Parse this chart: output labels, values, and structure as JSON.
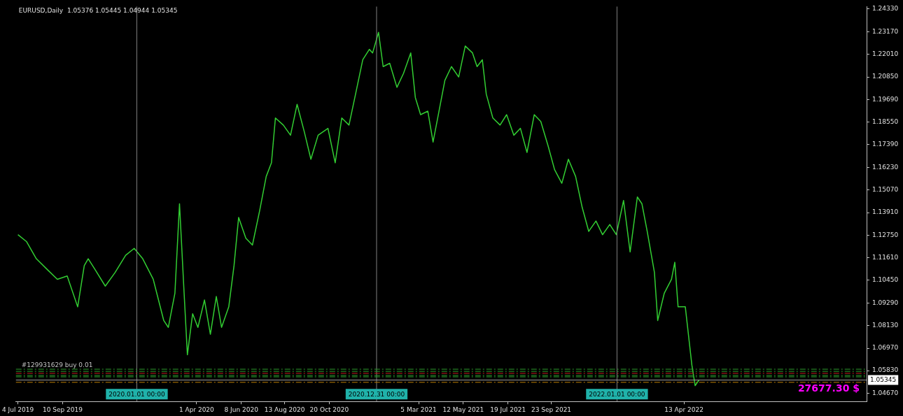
{
  "chart_data": {
    "type": "line",
    "title": "EURUSD,Daily  1.05376 1.05445 1.04944 1.05345",
    "x": [
      "2019-07-04",
      "2019-07-17",
      "2019-08-01",
      "2019-08-17",
      "2019-09-02",
      "2019-09-17",
      "2019-10-03",
      "2019-10-13",
      "2019-10-19",
      "2019-10-29",
      "2019-11-14",
      "2019-11-29",
      "2019-12-15",
      "2019-12-28",
      "2020-01-10",
      "2020-01-26",
      "2020-02-11",
      "2020-02-18",
      "2020-02-28",
      "2020-03-06",
      "2020-03-13",
      "2020-03-18",
      "2020-03-26",
      "2020-04-03",
      "2020-04-13",
      "2020-04-22",
      "2020-05-01",
      "2020-05-09",
      "2020-05-20",
      "2020-05-28",
      "2020-06-04",
      "2020-06-15",
      "2020-06-25",
      "2020-07-06",
      "2020-07-16",
      "2020-07-24",
      "2020-07-30",
      "2020-08-11",
      "2020-08-22",
      "2020-09-01",
      "2020-09-12",
      "2020-09-22",
      "2020-10-03",
      "2020-10-18",
      "2020-10-29",
      "2020-11-08",
      "2020-11-19",
      "2020-11-29",
      "2020-12-10",
      "2020-12-20",
      "2020-12-25",
      "2021-01-03",
      "2021-01-10",
      "2021-01-20",
      "2021-01-31",
      "2021-02-10",
      "2021-02-21",
      "2021-02-28",
      "2021-03-08",
      "2021-03-19",
      "2021-03-27",
      "2021-04-04",
      "2021-04-14",
      "2021-04-24",
      "2021-05-05",
      "2021-05-15",
      "2021-05-26",
      "2021-06-02",
      "2021-06-10",
      "2021-06-16",
      "2021-06-26",
      "2021-07-07",
      "2021-07-17",
      "2021-07-28",
      "2021-08-07",
      "2021-08-17",
      "2021-08-28",
      "2021-09-07",
      "2021-09-18",
      "2021-09-28",
      "2021-10-09",
      "2021-10-19",
      "2021-10-30",
      "2021-11-09",
      "2021-11-19",
      "2021-11-30",
      "2021-12-10",
      "2021-12-21",
      "2021-12-31",
      "2022-01-11",
      "2022-01-21",
      "2022-02-01",
      "2022-02-08",
      "2022-02-16",
      "2022-02-27",
      "2022-03-04",
      "2022-03-14",
      "2022-03-25",
      "2022-03-30",
      "2022-04-04",
      "2022-04-15",
      "2022-04-25",
      "2022-04-30",
      "2022-05-06"
    ],
    "series": [
      {
        "color": "#32cd32",
        "values": [
          1.1278,
          1.1243,
          1.1155,
          1.1102,
          1.105,
          1.1067,
          1.0909,
          1.112,
          1.1155,
          1.1102,
          1.1015,
          1.1085,
          1.1173,
          1.1208,
          1.1155,
          1.105,
          1.0839,
          1.0804,
          1.0979,
          1.1436,
          1.0979,
          1.0664,
          1.0874,
          1.0804,
          1.0944,
          1.0769,
          1.0962,
          1.0804,
          1.0909,
          1.112,
          1.1366,
          1.126,
          1.1225,
          1.1401,
          1.1576,
          1.1646,
          1.1875,
          1.1839,
          1.1787,
          1.1945,
          1.1804,
          1.1664,
          1.1787,
          1.1822,
          1.1646,
          1.1875,
          1.1839,
          1.1997,
          1.2173,
          1.2226,
          1.2208,
          1.2313,
          1.2138,
          1.2155,
          1.2032,
          1.2103,
          1.2208,
          1.198,
          1.1892,
          1.191,
          1.1752,
          1.1892,
          1.2068,
          1.2138,
          1.2085,
          1.2243,
          1.2208,
          1.2138,
          1.2173,
          1.1997,
          1.1875,
          1.1839,
          1.1892,
          1.1787,
          1.1822,
          1.1699,
          1.1892,
          1.1857,
          1.1734,
          1.1611,
          1.1541,
          1.1664,
          1.1576,
          1.1418,
          1.1295,
          1.1348,
          1.1278,
          1.133,
          1.1278,
          1.1453,
          1.119,
          1.1471,
          1.1436,
          1.1295,
          1.1085,
          1.0839,
          1.0979,
          1.105,
          1.1137,
          1.0909,
          1.0909,
          1.0611,
          1.0506,
          1.0535
        ]
      }
    ],
    "xlim": [
      "2019-07-01",
      "2023-01-16"
    ],
    "xticks": [
      {
        "value": "2019-07-04",
        "label": "4 Jul 2019"
      },
      {
        "value": "2019-09-10",
        "label": "10 Sep 2019"
      },
      {
        "value": "2020-04-01",
        "label": "1 Apr 2020"
      },
      {
        "value": "2020-06-08",
        "label": "8 Jun 2020"
      },
      {
        "value": "2020-08-13",
        "label": "13 Aug 2020"
      },
      {
        "value": "2020-10-20",
        "label": "20 Oct 2020"
      },
      {
        "value": "2021-03-05",
        "label": "5 Mar 2021"
      },
      {
        "value": "2021-05-12",
        "label": "12 May 2021"
      },
      {
        "value": "2021-07-19",
        "label": "19 Jul 2021"
      },
      {
        "value": "2021-09-23",
        "label": "23 Sep 2021"
      },
      {
        "value": "2022-04-13",
        "label": "13 Apr 2022"
      }
    ],
    "ylim": [
      1.0425,
      1.2445
    ],
    "yticks": [
      {
        "value": 1.0467,
        "label": "1.04670"
      },
      {
        "value": 1.0583,
        "label": "1.05830"
      },
      {
        "value": 1.0697,
        "label": "1.06970"
      },
      {
        "value": 1.0813,
        "label": "1.08130"
      },
      {
        "value": 1.0929,
        "label": "1.09290"
      },
      {
        "value": 1.1045,
        "label": "1.10450"
      },
      {
        "value": 1.1161,
        "label": "1.11610"
      },
      {
        "value": 1.1275,
        "label": "1.12750"
      },
      {
        "value": 1.1391,
        "label": "1.13910"
      },
      {
        "value": 1.1507,
        "label": "1.15070"
      },
      {
        "value": 1.1623,
        "label": "1.16230"
      },
      {
        "value": 1.1739,
        "label": "1.17390"
      },
      {
        "value": 1.1855,
        "label": "1.18550"
      },
      {
        "value": 1.1969,
        "label": "1.19690"
      },
      {
        "value": 1.2085,
        "label": "1.20850"
      },
      {
        "value": 1.2201,
        "label": "1.22010"
      },
      {
        "value": 1.2317,
        "label": "1.23170"
      },
      {
        "value": 1.2433,
        "label": "1.24330"
      }
    ],
    "ref_lines": [
      {
        "axis": "x",
        "value": "2020-01-01",
        "label": "2020.01.01 00:00",
        "color": "#808080",
        "line_style": "solid"
      },
      {
        "axis": "x",
        "value": "2020-12-31",
        "label": "2020.12.31 00:00",
        "color": "#808080",
        "line_style": "solid"
      },
      {
        "axis": "x",
        "value": "2022-01-01",
        "label": "2022.01.01 00:00",
        "color": "#808080",
        "line_style": "solid"
      },
      {
        "axis": "y",
        "value": 1.059,
        "label": "#129931629 buy 0.01",
        "color": "#2e9e2e",
        "line_style": "dashed"
      },
      {
        "axis": "y",
        "value": 1.0579,
        "color": "#2e9e2e",
        "line_style": "dashed"
      },
      {
        "axis": "y",
        "value": 1.0569,
        "color": "#d02020",
        "line_style": "dashed"
      },
      {
        "axis": "y",
        "value": 1.0558,
        "color": "#2e9e2e",
        "line_style": "dashed"
      },
      {
        "axis": "y",
        "value": 1.0551,
        "color": "#2e9e2e",
        "line_style": "dashed"
      },
      {
        "axis": "y",
        "value": 1.05345,
        "label": "1.05345",
        "color": "#a0a0a0",
        "line_style": "solid"
      },
      {
        "axis": "y",
        "value": 1.0523,
        "color": "#c08000",
        "line_style": "dashed"
      }
    ],
    "annotations": [
      "27677.30 $"
    ],
    "grid": false,
    "legend": false,
    "marker": "none",
    "line_style": "solid"
  }
}
